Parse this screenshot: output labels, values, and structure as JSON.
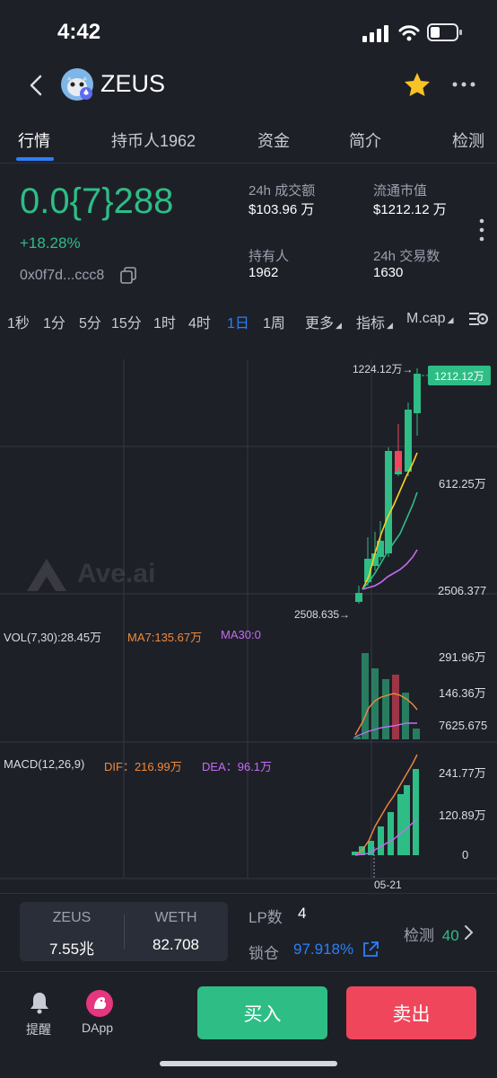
{
  "status_bar": {
    "time": "4:42"
  },
  "header": {
    "token_name": "ZEUS"
  },
  "tabs": [
    {
      "label": "行情"
    },
    {
      "label": "持币人1962"
    },
    {
      "label": "资金"
    },
    {
      "label": "简介"
    },
    {
      "label": "检测"
    }
  ],
  "price": {
    "value": "0.0{7}288",
    "change": "+18.28%",
    "address": "0x0f7d...ccc8"
  },
  "stats": {
    "volume_24h_label": "24h 成交额",
    "volume_24h_value": "$103.96 万",
    "market_cap_label": "流通市值",
    "market_cap_value": "$1212.12 万",
    "holders_label": "持有人",
    "holders_value": "1962",
    "tx_24h_label": "24h 交易数",
    "tx_24h_value": "1630"
  },
  "timeframes": [
    "1秒",
    "1分",
    "5分",
    "15分",
    "1时",
    "4时",
    "1日",
    "1周"
  ],
  "chart_toolbar": {
    "more": "更多",
    "indicators": "指标",
    "mcap": "M.cap"
  },
  "chart": {
    "watermark": "Ave.ai",
    "high_marker": "1224.12万→",
    "current_badge": "1212.12万",
    "axis_mid": "612.25万",
    "axis_low": "2506.377",
    "low_marker": "2508.635→",
    "vol_label": "VOL(7,30):28.45万",
    "vol_ma7": "MA7:135.67万",
    "vol_ma30": "MA30:0",
    "vol_axis_top": "291.96万",
    "vol_axis_mid": "146.36万",
    "vol_axis_low": "7625.675",
    "macd_label": "MACD(12,26,9)",
    "macd_dif": "DIF：216.99万",
    "macd_dea": "DEA：96.1万",
    "macd_axis_top": "241.77万",
    "macd_axis_mid": "120.89万",
    "macd_axis_low": "0",
    "date_label": "05-21",
    "colors": {
      "up": "#2ebd85",
      "down": "#f0465c",
      "ma_yellow": "#f5d323",
      "ma_green": "#2ebd85",
      "ma_purple": "#c56cf0"
    }
  },
  "pool": {
    "token_a": "ZEUS",
    "token_a_amount": "7.55兆",
    "token_b": "WETH",
    "token_b_amount": "82.708"
  },
  "lp": {
    "lp_label": "LP数",
    "lp_value": "4",
    "lock_label": "锁仓",
    "lock_value": "97.918%",
    "check_label": "检测",
    "check_value": "40"
  },
  "bottom_nav": {
    "alert_label": "提醒",
    "dapp_label": "DApp",
    "buy_label": "买入",
    "sell_label": "卖出"
  }
}
